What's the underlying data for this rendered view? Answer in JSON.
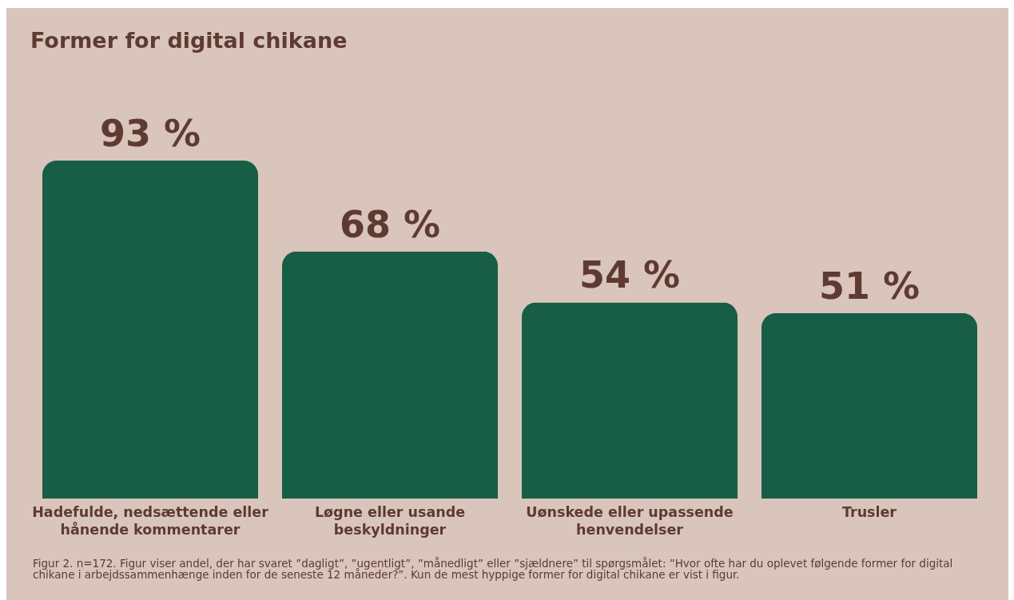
{
  "chart_data": {
    "type": "bar",
    "title": "Former for digital chikane",
    "categories": [
      "Hadefulde, nedsættende eller hånende kommentarer",
      "Løgne eller usande beskyldninger",
      "Uønskede eller upassende henvendelser",
      "Trusler"
    ],
    "values": [
      93,
      68,
      54,
      51
    ],
    "value_labels": [
      "93 %",
      "68 %",
      "54 %",
      "51 %"
    ],
    "color": "#185d45",
    "annotations": [
      "Figur 2. n=172. Figur viser andel, der har svaret ”dagligt”, ”ugentligt”, ”månedligt” eller ”sjældnere” til spørgsmålet: ”Hvor ofte har du oplevet følgende former for digital chikane i arbejdssammenhænge inden for de seneste 12 måneder?”. Kun de mest hyppige former for digital chikane er vist i figur."
    ]
  }
}
